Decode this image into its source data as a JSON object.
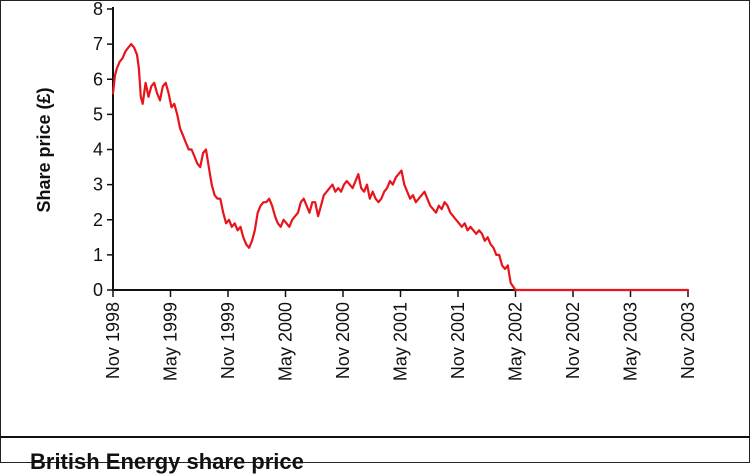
{
  "caption": "British Energy share price",
  "chart_data": {
    "type": "line",
    "title": "",
    "xlabel": "",
    "ylabel": "Share price (£)",
    "ylim": [
      0,
      8
    ],
    "yticks": [
      0,
      1,
      2,
      3,
      4,
      5,
      6,
      7,
      8
    ],
    "xlim": [
      0,
      60
    ],
    "xtick_labels": [
      "Nov 1998",
      "May 1999",
      "Nov 1999",
      "May 2000",
      "Nov 2000",
      "May 2001",
      "Nov 2001",
      "May 2002",
      "Nov 2002",
      "May 2003",
      "Nov 2003"
    ],
    "xtick_positions": [
      0,
      6,
      12,
      18,
      24,
      30,
      36,
      42,
      48,
      54,
      60
    ],
    "grid": false,
    "series": [
      {
        "color": "#e8141b",
        "x": [
          0,
          0.2,
          0.4,
          0.7,
          1.0,
          1.3,
          1.6,
          1.9,
          2.2,
          2.5,
          2.7,
          2.9,
          3.1,
          3.4,
          3.7,
          4.0,
          4.3,
          4.6,
          4.9,
          5.2,
          5.5,
          5.8,
          6.1,
          6.4,
          6.7,
          7.0,
          7.3,
          7.6,
          7.9,
          8.2,
          8.5,
          8.8,
          9.1,
          9.4,
          9.7,
          10.0,
          10.3,
          10.6,
          10.9,
          11.2,
          11.5,
          11.8,
          12.1,
          12.4,
          12.7,
          13.0,
          13.3,
          13.6,
          13.9,
          14.2,
          14.5,
          14.8,
          15.1,
          15.4,
          15.7,
          16.0,
          16.3,
          16.6,
          16.9,
          17.2,
          17.5,
          17.8,
          18.1,
          18.4,
          18.7,
          19.0,
          19.3,
          19.6,
          19.9,
          20.2,
          20.5,
          20.8,
          21.1,
          21.4,
          21.7,
          22.0,
          22.3,
          22.6,
          22.9,
          23.2,
          23.5,
          23.8,
          24.1,
          24.4,
          24.7,
          25.0,
          25.3,
          25.6,
          25.9,
          26.2,
          26.5,
          26.8,
          27.1,
          27.4,
          27.7,
          28.0,
          28.3,
          28.6,
          28.9,
          29.2,
          29.5,
          29.8,
          30.1,
          30.4,
          30.7,
          31.0,
          31.3,
          31.6,
          31.9,
          32.2,
          32.5,
          32.8,
          33.1,
          33.4,
          33.7,
          34.0,
          34.3,
          34.6,
          34.9,
          35.2,
          35.5,
          35.8,
          36.1,
          36.4,
          36.7,
          37.0,
          37.3,
          37.6,
          37.9,
          38.2,
          38.5,
          38.8,
          39.1,
          39.4,
          39.7,
          40.0,
          40.3,
          40.6,
          40.9,
          41.2,
          41.5,
          42.0,
          45.0,
          50.0,
          55.0,
          60.0
        ],
        "y": [
          5.6,
          6.1,
          6.3,
          6.5,
          6.6,
          6.8,
          6.9,
          7.0,
          6.9,
          6.7,
          6.3,
          5.5,
          5.3,
          5.9,
          5.5,
          5.8,
          5.9,
          5.6,
          5.4,
          5.8,
          5.9,
          5.6,
          5.2,
          5.3,
          5.0,
          4.6,
          4.4,
          4.2,
          4.0,
          4.0,
          3.8,
          3.6,
          3.5,
          3.9,
          4.0,
          3.5,
          3.0,
          2.7,
          2.6,
          2.6,
          2.2,
          1.9,
          2.0,
          1.8,
          1.9,
          1.7,
          1.8,
          1.5,
          1.3,
          1.2,
          1.4,
          1.7,
          2.2,
          2.4,
          2.5,
          2.5,
          2.6,
          2.4,
          2.1,
          1.9,
          1.8,
          2.0,
          1.9,
          1.8,
          2.0,
          2.1,
          2.2,
          2.5,
          2.6,
          2.4,
          2.2,
          2.5,
          2.5,
          2.1,
          2.4,
          2.7,
          2.8,
          2.9,
          3.0,
          2.8,
          2.9,
          2.8,
          3.0,
          3.1,
          3.0,
          2.9,
          3.1,
          3.3,
          2.9,
          2.8,
          3.0,
          2.6,
          2.8,
          2.6,
          2.5,
          2.6,
          2.8,
          2.9,
          3.1,
          3.0,
          3.2,
          3.3,
          3.4,
          3.0,
          2.8,
          2.6,
          2.7,
          2.5,
          2.6,
          2.7,
          2.8,
          2.6,
          2.4,
          2.3,
          2.2,
          2.4,
          2.3,
          2.5,
          2.4,
          2.2,
          2.1,
          2.0,
          1.9,
          1.8,
          1.9,
          1.7,
          1.8,
          1.7,
          1.6,
          1.7,
          1.6,
          1.4,
          1.5,
          1.3,
          1.2,
          1.0,
          1.0,
          0.7,
          0.6,
          0.7,
          0.2,
          0.0,
          0.0,
          0.0,
          0.0,
          0.0
        ]
      }
    ]
  }
}
